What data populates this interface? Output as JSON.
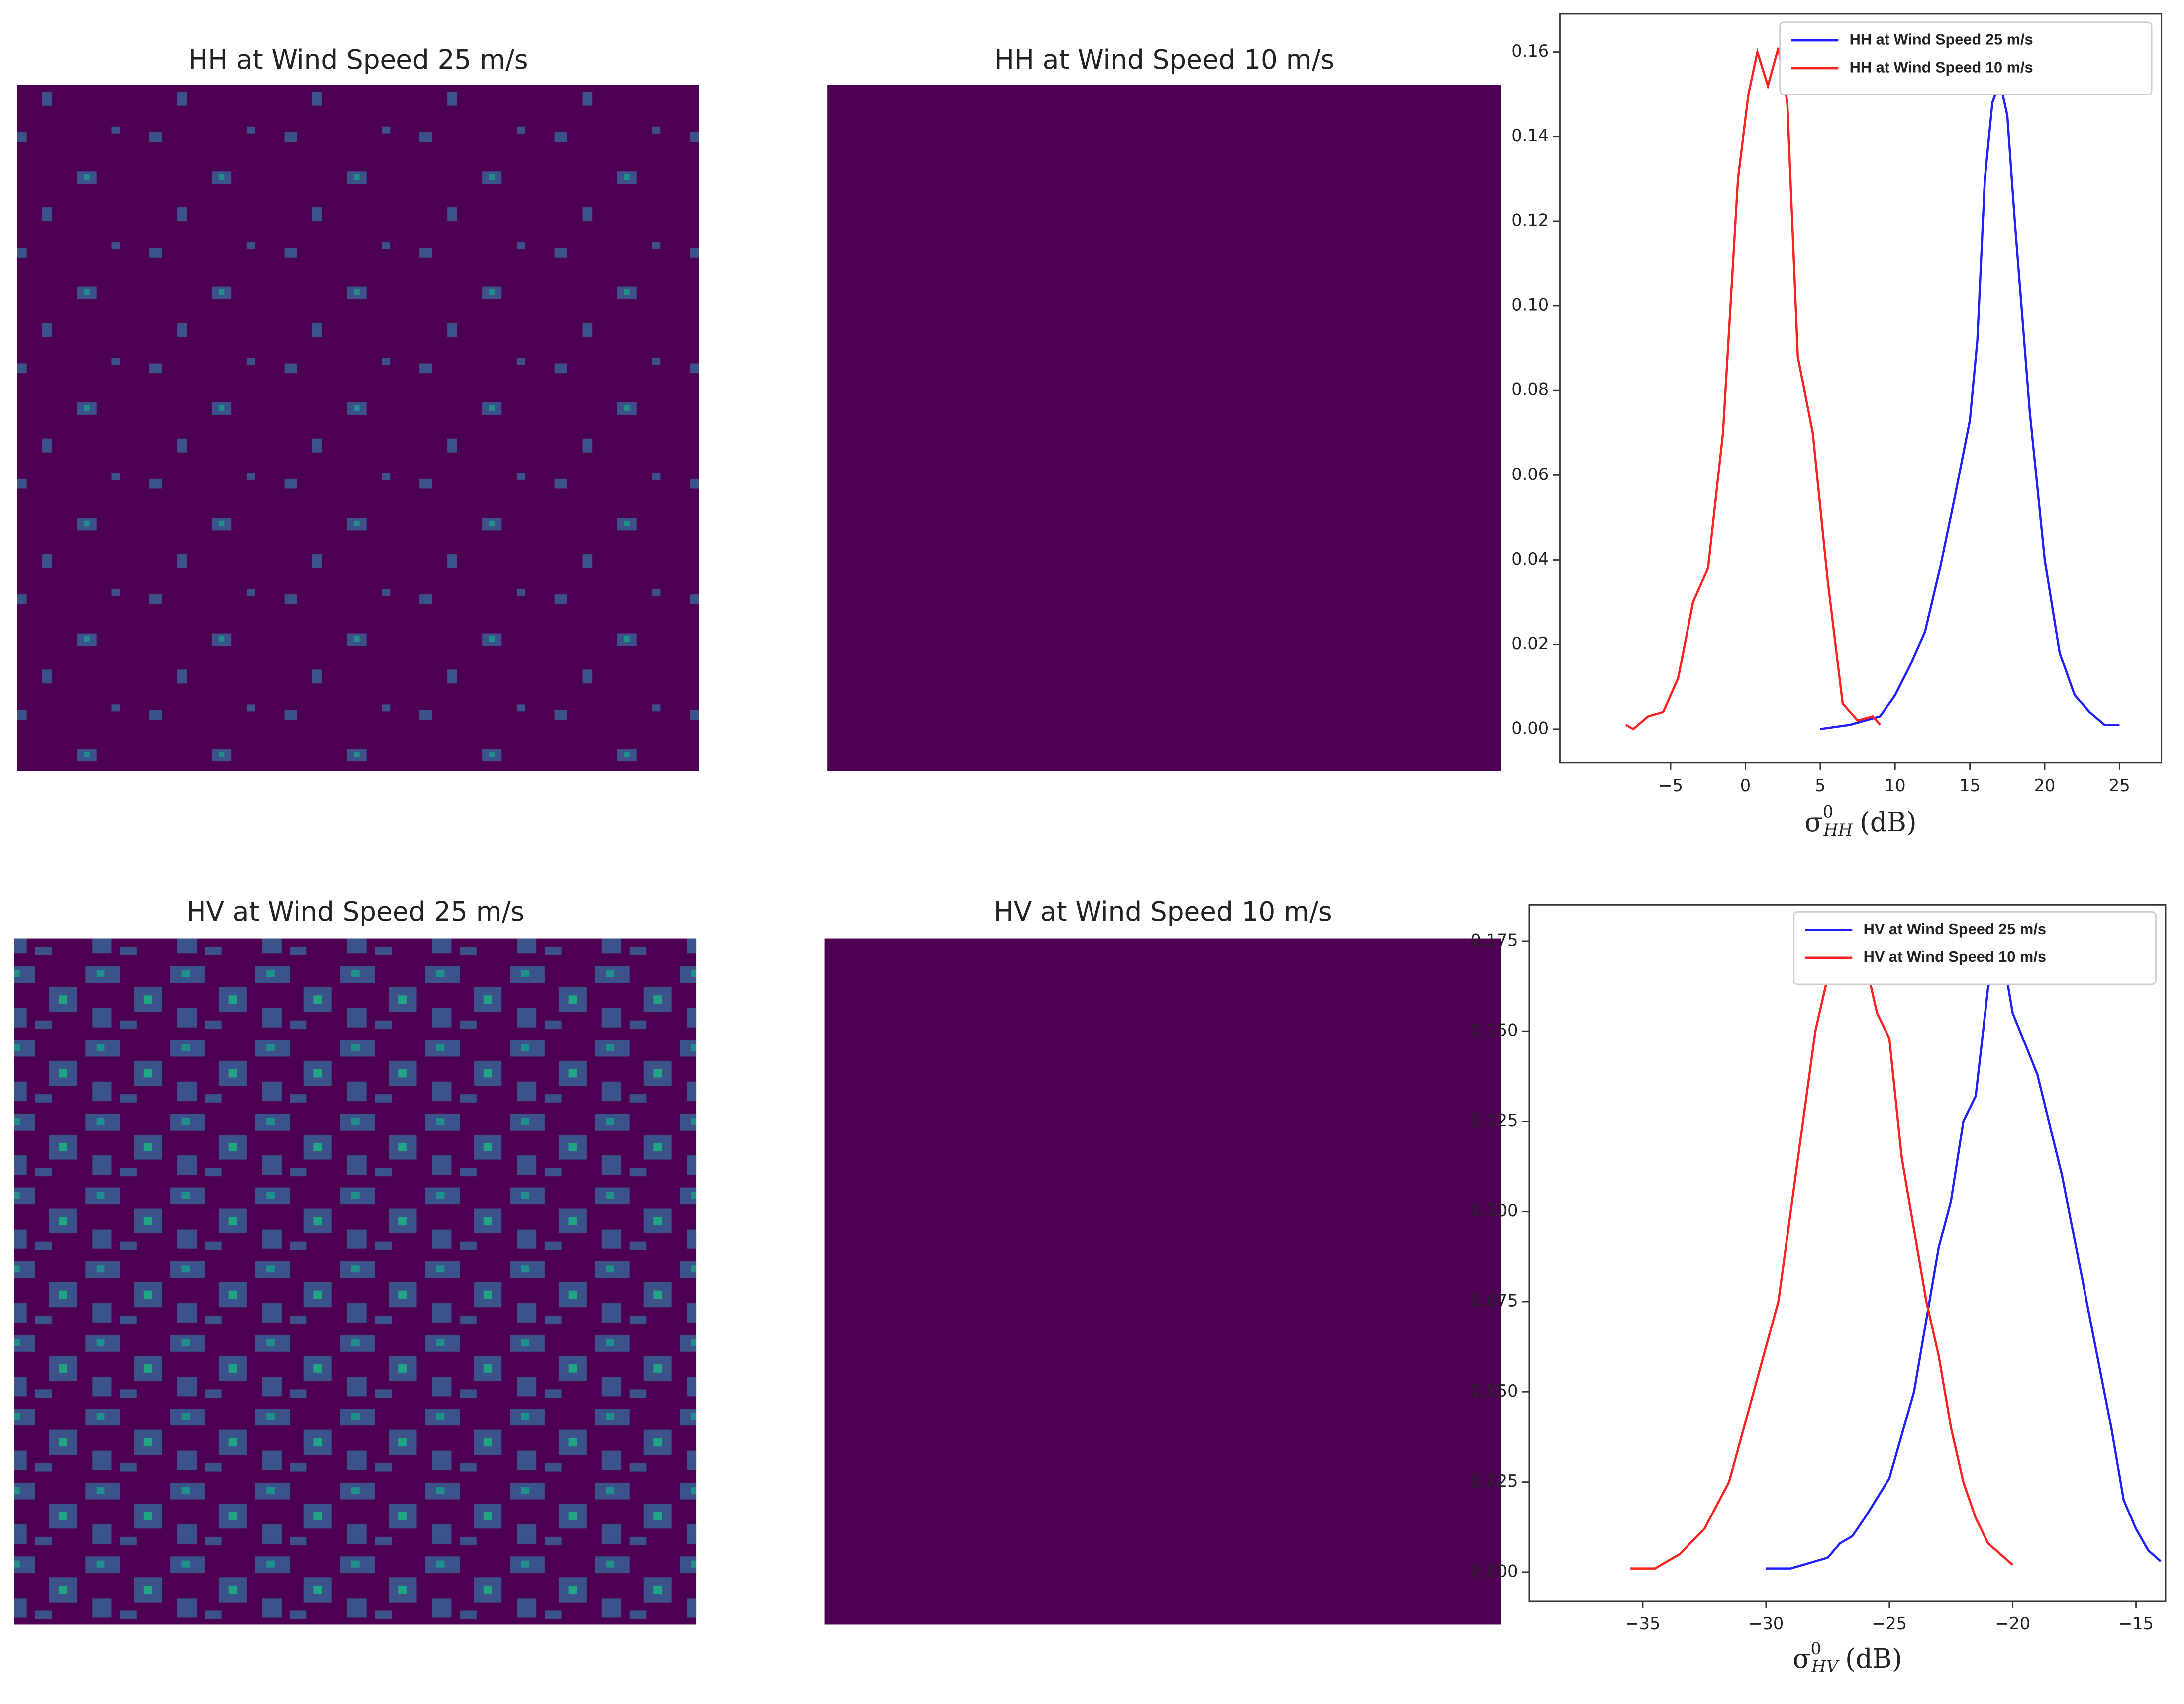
{
  "chart_data": [
    {
      "type": "image",
      "title": "HH at Wind Speed 25 m/s",
      "color": "#4e0152"
    },
    {
      "type": "image",
      "title": "HH at Wind Speed 10 m/s",
      "color": "#4e0152"
    },
    {
      "type": "line",
      "xlabel": {
        "symbol": "σ",
        "sup": "0",
        "sub": "HH",
        "unit": "(dB)"
      },
      "xlim": [
        -12.4,
        27.8
      ],
      "ylim": [
        -0.008,
        0.169
      ],
      "xticks": [
        {
          "value": -5,
          "label": "−5"
        },
        0,
        5,
        10,
        15,
        20,
        25
      ],
      "yticks": [
        {
          "value": 0,
          "label": "0.00"
        },
        {
          "value": 0.02,
          "label": "0.02"
        },
        {
          "value": 0.04,
          "label": "0.04"
        },
        {
          "value": 0.06,
          "label": "0.06"
        },
        {
          "value": 0.08,
          "label": "0.08"
        },
        {
          "value": 0.1,
          "label": "0.10"
        },
        {
          "value": 0.12,
          "label": "0.12"
        },
        {
          "value": 0.14,
          "label": "0.14"
        },
        {
          "value": 0.16,
          "label": "0.16"
        }
      ],
      "legend": "upper right",
      "series": [
        {
          "name": "HH at Wind Speed 25 m/s",
          "color": "#2020ff",
          "x": [
            5,
            7,
            9,
            10,
            11,
            12,
            13,
            14,
            15,
            15.5,
            16,
            16.5,
            17,
            17.5,
            18,
            19,
            20,
            21,
            22,
            23,
            24,
            25
          ],
          "y": [
            0,
            0.001,
            0.003,
            0.008,
            0.015,
            0.023,
            0.038,
            0.055,
            0.073,
            0.092,
            0.13,
            0.148,
            0.153,
            0.145,
            0.12,
            0.075,
            0.04,
            0.018,
            0.008,
            0.004,
            0.001,
            0.001
          ]
        },
        {
          "name": "HH at Wind Speed 10 m/s",
          "color": "#ff2020",
          "x": [
            -8,
            -7.5,
            -6.5,
            -5.5,
            -4.5,
            -3.5,
            -2.5,
            -1.5,
            -0.5,
            0.2,
            0.8,
            1.5,
            2.2,
            2.8,
            3.5,
            4.5,
            5.5,
            6.5,
            7.5,
            8.5,
            9
          ],
          "y": [
            0.001,
            0,
            0.003,
            0.004,
            0.012,
            0.03,
            0.038,
            0.07,
            0.13,
            0.15,
            0.16,
            0.152,
            0.161,
            0.148,
            0.088,
            0.07,
            0.035,
            0.006,
            0.002,
            0.003,
            0.001
          ]
        }
      ]
    },
    {
      "type": "image",
      "title": "HV at Wind Speed 25 m/s",
      "color": "#4e0152"
    },
    {
      "type": "image",
      "title": "HV at Wind Speed 10 m/s",
      "color": "#4e0152"
    },
    {
      "type": "line",
      "xlabel": {
        "symbol": "σ",
        "sup": "0",
        "sub": "HV",
        "unit": "(dB)"
      },
      "xlim": [
        -39.6,
        -13.8
      ],
      "ylim": [
        -0.008,
        0.185
      ],
      "xticks": [
        {
          "value": -35,
          "label": "−35"
        },
        {
          "value": -30,
          "label": "−30"
        },
        {
          "value": -25,
          "label": "−25"
        },
        {
          "value": -20,
          "label": "−20"
        },
        {
          "value": -15,
          "label": "−15"
        }
      ],
      "yticks": [
        {
          "value": 0,
          "label": "0.000"
        },
        {
          "value": 0.025,
          "label": "0.025"
        },
        {
          "value": 0.05,
          "label": "0.050"
        },
        {
          "value": 0.075,
          "label": "0.075"
        },
        {
          "value": 0.1,
          "label": "0.100"
        },
        {
          "value": 0.125,
          "label": "0.125"
        },
        {
          "value": 0.15,
          "label": "0.150"
        },
        {
          "value": 0.175,
          "label": "0.175"
        }
      ],
      "legend": "upper right",
      "series": [
        {
          "name": "HV at Wind Speed 25 m/s",
          "color": "#2020ff",
          "x": [
            -30,
            -29,
            -28,
            -27.5,
            -27,
            -26.5,
            -26,
            -25,
            -24,
            -23.5,
            -23,
            -22.5,
            -22,
            -21.5,
            -21,
            -20.5,
            -20,
            -19,
            -18,
            -17,
            -16,
            -15.5,
            -15,
            -14.5,
            -14
          ],
          "y": [
            0.001,
            0.001,
            0.003,
            0.004,
            0.008,
            0.01,
            0.015,
            0.026,
            0.05,
            0.07,
            0.09,
            0.103,
            0.125,
            0.132,
            0.162,
            0.175,
            0.155,
            0.138,
            0.11,
            0.075,
            0.04,
            0.02,
            0.012,
            0.006,
            0.003
          ]
        },
        {
          "name": "HV at Wind Speed 10 m/s",
          "color": "#ff2020",
          "x": [
            -35.5,
            -34.5,
            -33.5,
            -32.5,
            -31.5,
            -30.5,
            -29.5,
            -29,
            -28.5,
            -28,
            -27.5,
            -27,
            -26.5,
            -26,
            -25.5,
            -25,
            -24.5,
            -24,
            -23.5,
            -23,
            -22.5,
            -22,
            -21.5,
            -21,
            -20.5,
            -20
          ],
          "y": [
            0.001,
            0.001,
            0.005,
            0.012,
            0.025,
            0.05,
            0.075,
            0.1,
            0.125,
            0.15,
            0.165,
            0.172,
            0.176,
            0.17,
            0.155,
            0.148,
            0.115,
            0.095,
            0.075,
            0.06,
            0.04,
            0.025,
            0.015,
            0.008,
            0.005,
            0.002
          ]
        }
      ]
    }
  ]
}
